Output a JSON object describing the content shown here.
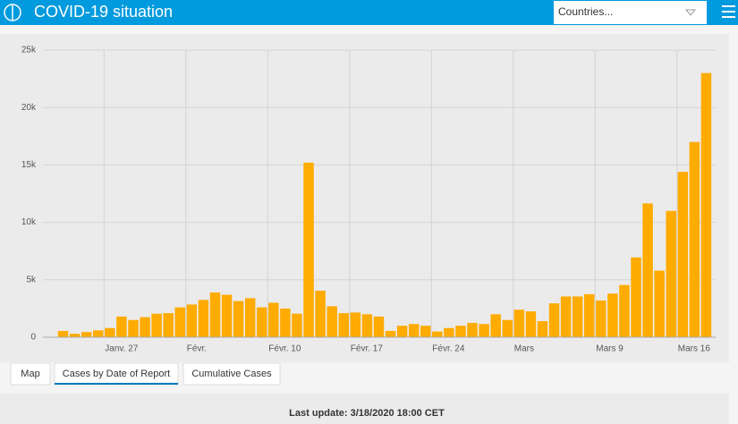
{
  "header": {
    "title": "COVID-19 situation",
    "dropdown": "Countries..."
  },
  "chart_data": {
    "type": "bar",
    "categories": [
      null,
      null,
      null,
      null,
      "Janv. 27",
      null,
      null,
      null,
      null,
      null,
      null,
      "Févr.",
      null,
      null,
      null,
      null,
      null,
      null,
      "Févr. 10",
      null,
      null,
      null,
      null,
      null,
      null,
      "Févr. 17",
      null,
      null,
      null,
      null,
      null,
      null,
      "Févr. 24",
      null,
      null,
      null,
      null,
      null,
      null,
      "Mars",
      null,
      null,
      null,
      null,
      null,
      null,
      "Mars 9",
      null,
      null,
      null,
      null,
      null,
      null,
      "Mars 16",
      null,
      null
    ],
    "values": [
      550,
      300,
      450,
      600,
      800,
      1800,
      1500,
      1750,
      2050,
      2100,
      2600,
      2850,
      3250,
      3900,
      3700,
      3150,
      3400,
      2600,
      3000,
      2500,
      2050,
      15200,
      4050,
      2700,
      2100,
      2150,
      2000,
      1800,
      550,
      1000,
      1150,
      1000,
      500,
      800,
      1000,
      1250,
      1150,
      2000,
      1500,
      2400,
      2250,
      1400,
      2950,
      3550,
      3550,
      3750,
      3200,
      3800,
      4550,
      6950,
      11650,
      5800,
      11000,
      14400,
      17000,
      23000
    ],
    "color": "#ffab00",
    "ylim": [
      0,
      25000
    ],
    "yticks": [
      0,
      {
        "value": 5000,
        "label": "5k"
      },
      {
        "value": 10000,
        "label": "10k"
      },
      {
        "value": 15000,
        "label": "15k"
      },
      {
        "value": 20000,
        "label": "20k"
      },
      {
        "value": 25000,
        "label": "25k"
      }
    ],
    "grid": true
  },
  "tabs": [
    "Map",
    "Cases by Date of Report",
    "Cumulative Cases"
  ],
  "footer": "Last update: 3/18/2020 18:00 CET"
}
